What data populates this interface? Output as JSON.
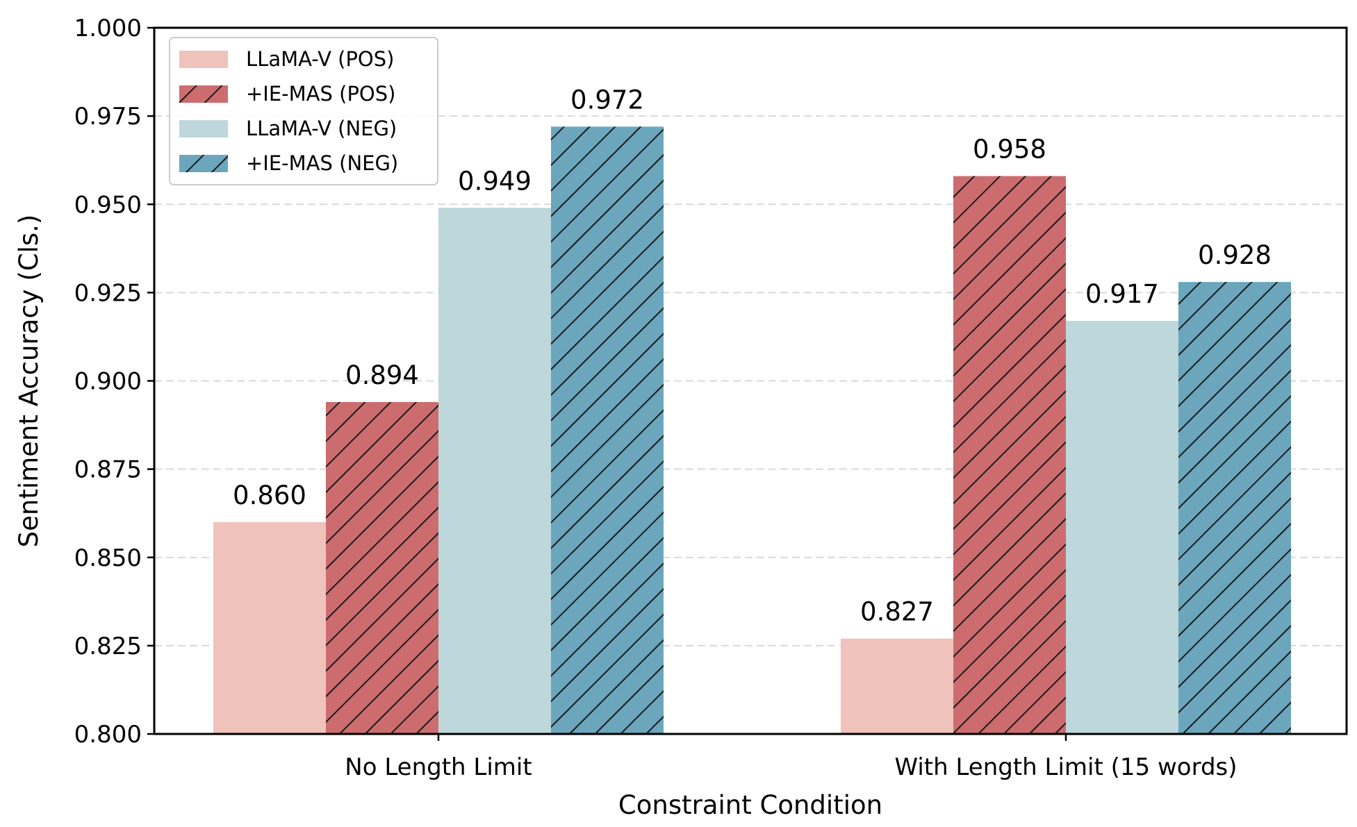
{
  "chart_data": {
    "type": "bar",
    "title": "",
    "xlabel": "Constraint Condition",
    "ylabel": "Sentiment Accuracy (Cls.)",
    "categories": [
      "No Length Limit",
      "With Length Limit (15 words)"
    ],
    "series": [
      {
        "name": "LLaMA-V (POS)",
        "values": [
          0.86,
          0.827
        ],
        "color": "#f0c2bc",
        "hatch": false
      },
      {
        "name": "+IE-MAS (POS)",
        "values": [
          0.894,
          0.958
        ],
        "color": "#cd6c6f",
        "hatch": true
      },
      {
        "name": "LLaMA-V (NEG)",
        "values": [
          0.949,
          0.917
        ],
        "color": "#bdd7db",
        "hatch": false
      },
      {
        "name": "+IE-MAS (NEG)",
        "values": [
          0.972,
          0.928
        ],
        "color": "#6ba6bd",
        "hatch": true
      }
    ],
    "data_labels": [
      [
        "0.860",
        "0.827"
      ],
      [
        "0.894",
        "0.958"
      ],
      [
        "0.949",
        "0.917"
      ],
      [
        "0.972",
        "0.928"
      ]
    ],
    "ylim": [
      0.8,
      1.0
    ],
    "yticks": [
      "0.800",
      "0.825",
      "0.850",
      "0.875",
      "0.900",
      "0.925",
      "0.950",
      "0.975",
      "1.000"
    ],
    "grid": true,
    "legend_position": "top-left"
  }
}
